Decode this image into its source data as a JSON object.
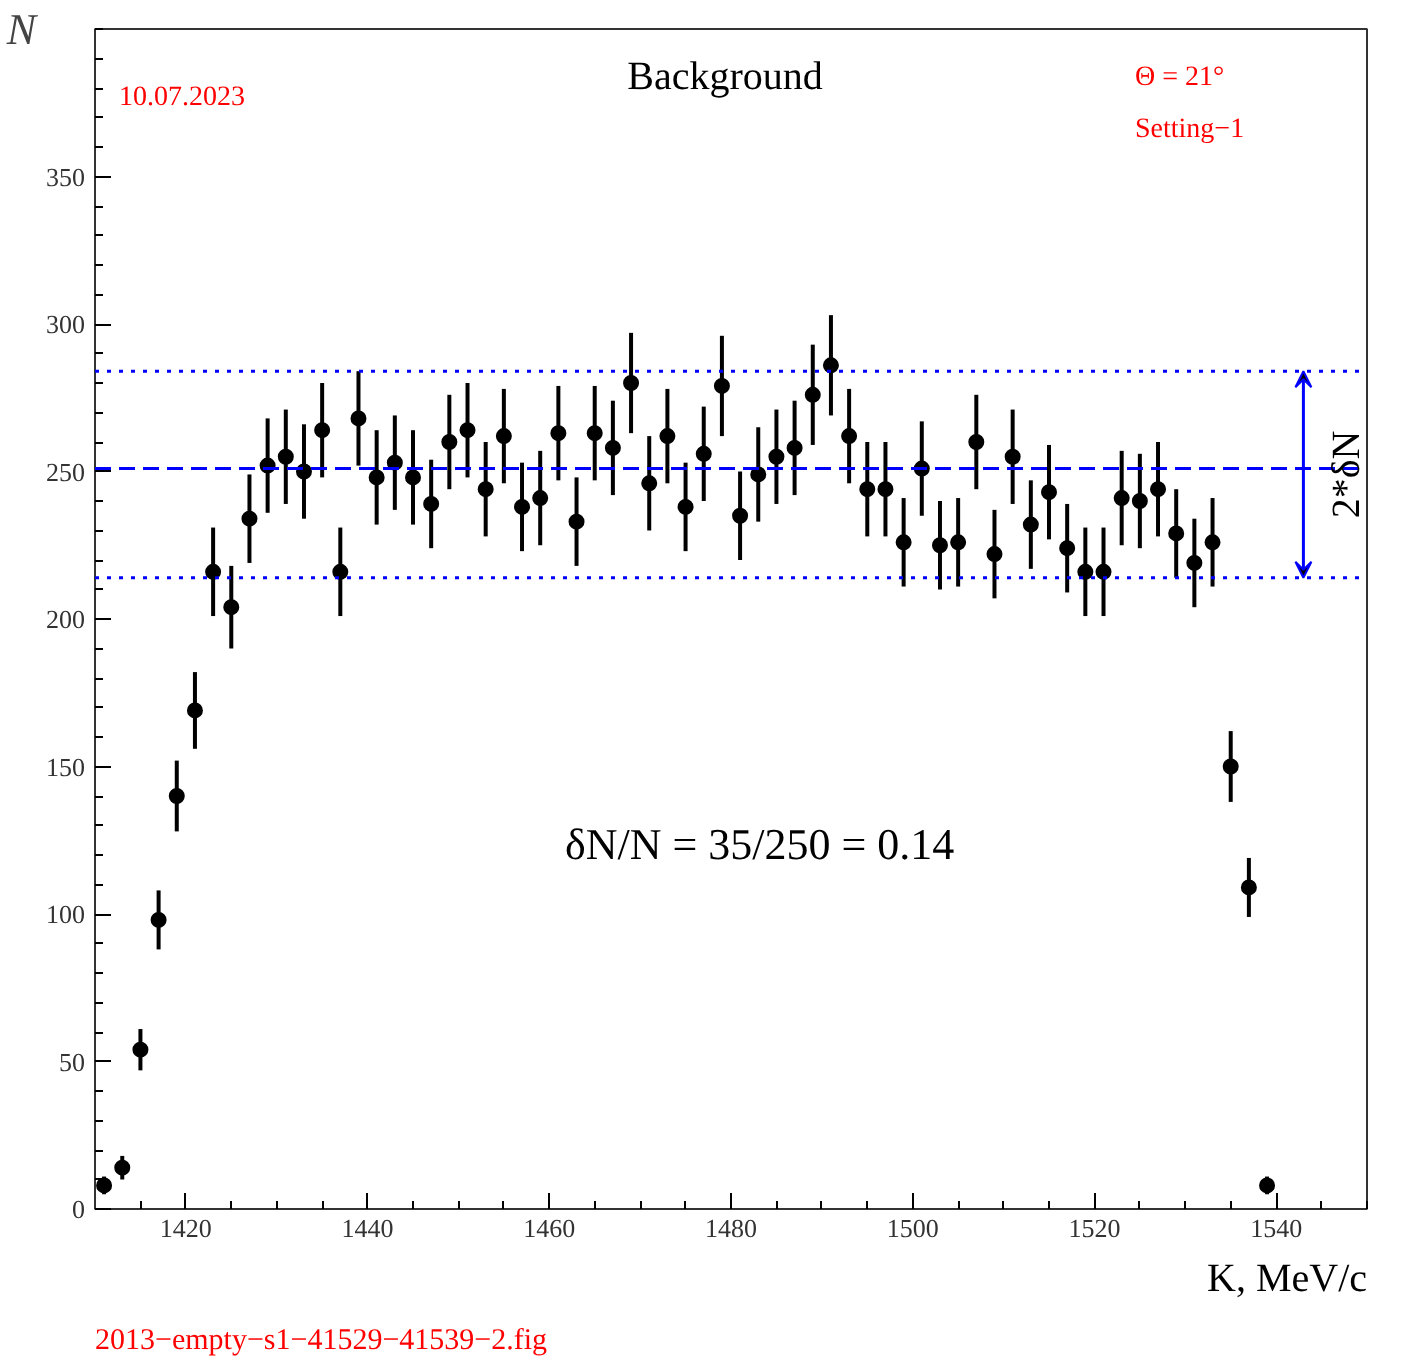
{
  "chart_data": {
    "type": "scatter",
    "title": "Background",
    "xlabel": "K, MeV/c",
    "ylabel": "N",
    "x": [
      1411,
      1413,
      1415,
      1417,
      1419,
      1421,
      1423,
      1425,
      1427,
      1429,
      1431,
      1433,
      1435,
      1437,
      1439,
      1441,
      1443,
      1445,
      1447,
      1449,
      1451,
      1453,
      1455,
      1457,
      1459,
      1461,
      1463,
      1465,
      1467,
      1469,
      1471,
      1473,
      1475,
      1477,
      1479,
      1481,
      1483,
      1485,
      1487,
      1489,
      1491,
      1493,
      1495,
      1497,
      1499,
      1501,
      1503,
      1505,
      1507,
      1509,
      1511,
      1513,
      1515,
      1517,
      1519,
      1521,
      1523,
      1525,
      1527,
      1529,
      1531,
      1533,
      1535,
      1537,
      1539
    ],
    "series": [
      {
        "color": "#000000",
        "values": [
          8,
          14,
          54,
          98,
          140,
          169,
          216,
          204,
          234,
          252,
          255,
          250,
          264,
          216,
          268,
          248,
          253,
          248,
          239,
          260,
          264,
          244,
          262,
          238,
          241,
          263,
          233,
          263,
          258,
          280,
          246,
          262,
          238,
          256,
          279,
          235,
          249,
          255,
          258,
          276,
          286,
          262,
          244,
          244,
          226,
          251,
          225,
          226,
          260,
          222,
          255,
          232,
          243,
          224,
          216,
          216,
          241,
          240,
          244,
          229,
          219,
          226,
          150,
          109,
          8
        ],
        "errors": [
          3,
          4,
          7,
          10,
          12,
          13,
          15,
          14,
          15,
          16,
          16,
          16,
          16,
          15,
          16,
          16,
          16,
          16,
          15,
          16,
          16,
          16,
          16,
          15,
          16,
          16,
          15,
          16,
          16,
          17,
          16,
          16,
          15,
          16,
          17,
          15,
          16,
          16,
          16,
          17,
          17,
          16,
          16,
          16,
          15,
          16,
          15,
          15,
          16,
          15,
          16,
          15,
          16,
          15,
          15,
          15,
          16,
          16,
          16,
          15,
          15,
          15,
          12,
          10,
          3
        ]
      }
    ],
    "xlim": [
      1410,
      1550
    ],
    "ylim": [
      0,
      400
    ],
    "xticks": [
      1420,
      1440,
      1460,
      1480,
      1500,
      1520,
      1540
    ],
    "yticks": [
      0,
      50,
      100,
      150,
      200,
      250,
      300,
      350
    ],
    "marker": "circle",
    "grid": false,
    "ref_lines": [
      {
        "axis": "y",
        "value": 251,
        "label": null,
        "color": "#0000ff",
        "line_style": "dashed"
      },
      {
        "axis": "y",
        "value": 284,
        "label": null,
        "color": "#0000ff",
        "line_style": "dotted"
      },
      {
        "axis": "y",
        "value": 214,
        "label": null,
        "color": "#0000ff",
        "line_style": "dotted"
      }
    ],
    "annotations": [
      "10.07.2023",
      "Θ = 21°",
      "Setting−1",
      "δN/N = 35/250 = 0.14",
      "2013−empty−s1−41529−41539−2.fig",
      {
        "text": "2*δN",
        "x": 1543,
        "y": 249
      }
    ]
  }
}
